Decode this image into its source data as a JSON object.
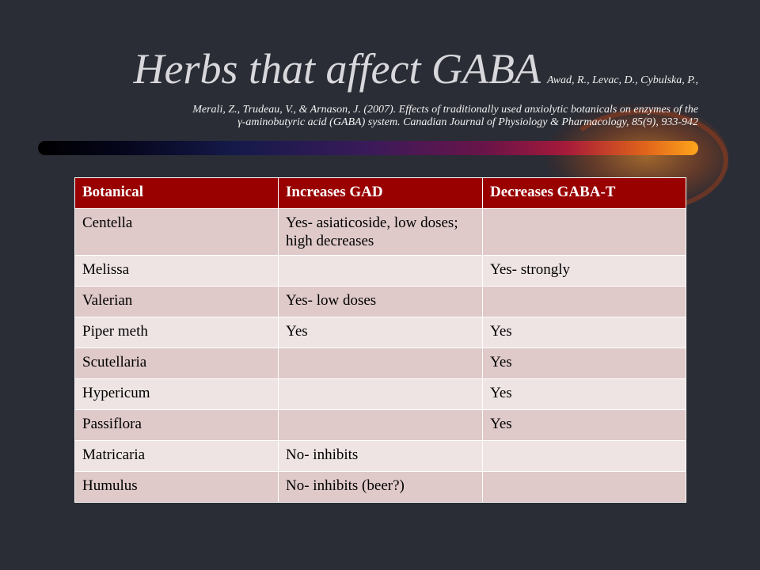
{
  "slide": {
    "title": "Herbs that affect GABA",
    "citation_inline": "Awad, R., Levac, D., Cybulska, P.,",
    "citation_line2": "Merali, Z., Trudeau, V., & Arnason, J. (2007). Effects of traditionally used anxiolytic botanicals on enzymes of the",
    "citation_line3": "γ-aminobutyric acid (GABA) system. Canadian Journal of Physiology & Pharmacology, 85(9), 933-942"
  },
  "table": {
    "headers": [
      "Botanical",
      "Increases GAD",
      "Decreases GABA-T"
    ],
    "rows": [
      [
        "Centella",
        "Yes- asiaticoside, low doses; high decreases",
        ""
      ],
      [
        "Melissa",
        "",
        "Yes- strongly"
      ],
      [
        "Valerian",
        "Yes- low doses",
        ""
      ],
      [
        "Piper meth",
        "Yes",
        "Yes"
      ],
      [
        "Scutellaria",
        "",
        "Yes"
      ],
      [
        "Hypericum",
        "",
        "Yes"
      ],
      [
        "Passiflora",
        "",
        "Yes"
      ],
      [
        "Matricaria",
        "No- inhibits",
        ""
      ],
      [
        "Humulus",
        "No- inhibits (beer?)",
        ""
      ]
    ]
  },
  "colors": {
    "background": "#2a2d35",
    "header_fill": "#990000",
    "row_odd": "#dfc9c9",
    "row_even": "#efe4e4"
  }
}
